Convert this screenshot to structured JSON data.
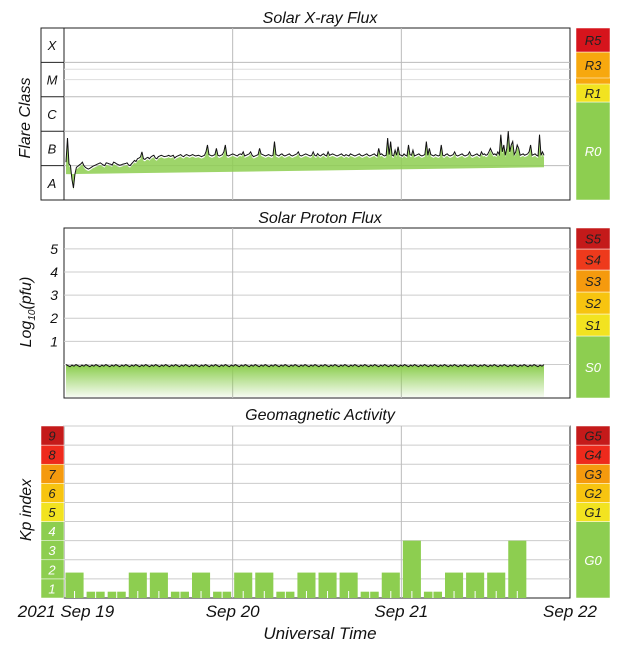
{
  "colors": {
    "green": "#8dce50",
    "r1": "#f2e320",
    "r3": "#f7a80e",
    "r5": "#d6141c",
    "s1": "#f2e320",
    "s2": "#f7c410",
    "s3": "#f59a0e",
    "s4": "#ee3a1c",
    "s5": "#c41a1a",
    "g1": "#f2e320",
    "g2": "#f7c410",
    "g3": "#f59a0e",
    "g4": "#ee2a1c",
    "g5": "#c41a1a",
    "kp": [
      "#8dce50",
      "#8dce50",
      "#8dce50",
      "#8dce50",
      "#f2e320",
      "#f7c410",
      "#f59a0e",
      "#ee2a1c",
      "#c41a1a"
    ]
  },
  "chart_data": [
    {
      "type": "area",
      "title": "Solar X-ray Flux",
      "ylabel": "Flare Class",
      "y_scale": "log",
      "flare_classes": [
        "A",
        "B",
        "C",
        "M",
        "X"
      ],
      "levels": [
        {
          "label": "R0",
          "color_key": "green"
        },
        {
          "label": "R1",
          "color_key": "r1"
        },
        {
          "label": "R3",
          "color_key": "r3"
        },
        {
          "label": "R5",
          "color_key": "r5"
        }
      ],
      "x_range_days": [
        "2021-09-19T00:00",
        "2021-09-22T00:00"
      ],
      "series_hourly_log_flux": [
        -6.9,
        -6.2,
        -6.95,
        -7,
        -7.4,
        -7.65,
        -7.25,
        -7.05,
        -7.02,
        -6.98,
        -6.95,
        -6.9,
        -7.0,
        -7.05,
        -7.08,
        -7.1,
        -7.08,
        -7.05,
        -7.02,
        -7.0,
        -6.98,
        -6.96,
        -6.94,
        -6.92,
        -6.95,
        -6.98,
        -7.0,
        -6.92,
        -6.93,
        -6.95,
        -6.96,
        -6.98,
        -6.9,
        -6.92,
        -6.95,
        -6.97,
        -6.99,
        -6.98,
        -6.96,
        -6.95,
        -6.94,
        -6.92,
        -6.98,
        -7.0,
        -6.95,
        -6.9,
        -6.85,
        -6.88,
        -6.8,
        -6.78,
        -6.75,
        -6.6,
        -6.8,
        -6.82,
        -6.78,
        -6.76,
        -6.8,
        -6.75,
        -6.72,
        -6.7,
        -6.78,
        -6.8,
        -6.74,
        -6.72,
        -6.7,
        -6.72,
        -6.74,
        -6.73,
        -6.72,
        -6.7,
        -6.73,
        -6.72,
        -6.7,
        -6.78,
        -6.74,
        -6.72,
        -6.7,
        -6.68,
        -6.72,
        -6.74,
        -6.7,
        -6.68,
        -6.7,
        -6.72,
        -6.7,
        -6.68,
        -6.7,
        -6.72,
        -6.71,
        -6.7,
        -6.72,
        -6.74,
        -6.72,
        -6.7,
        -6.6,
        -6.4,
        -6.68,
        -6.7,
        -6.72,
        -6.7,
        -6.68,
        -6.5,
        -6.7,
        -6.72,
        -6.7,
        -6.68,
        -6.6,
        -6.4,
        -6.7,
        -6.72,
        -6.7,
        -6.68,
        -6.66,
        -6.68,
        -6.7,
        -6.72,
        -6.68,
        -6.66,
        -6.68,
        -6.6,
        -6.72,
        -6.7,
        -6.68,
        -6.66,
        -6.6,
        -6.7,
        -6.74,
        -6.72,
        -6.7,
        -6.68,
        -6.5,
        -6.66,
        -6.68,
        -6.7,
        -6.72,
        -6.7,
        -6.68,
        -6.7,
        -6.72,
        -6.7,
        -6.3,
        -6.68,
        -6.7,
        -6.72,
        -6.68,
        -6.66,
        -6.7,
        -6.72,
        -6.7,
        -6.68,
        -6.66,
        -6.7,
        -6.72,
        -6.7,
        -6.68,
        -6.66,
        -6.6,
        -6.7,
        -6.72,
        -6.7,
        -6.68,
        -6.66,
        -6.68,
        -6.7,
        -6.72,
        -6.7,
        -6.6,
        -6.7,
        -6.72,
        -6.65,
        -6.7,
        -6.72,
        -6.68,
        -6.66,
        -6.7,
        -6.72,
        -6.6,
        -6.7,
        -6.68,
        -6.66,
        -6.68,
        -6.7,
        -6.72,
        -6.7,
        -6.68,
        -6.66,
        -6.7,
        -6.72,
        -6.68,
        -6.7,
        -6.72,
        -6.66,
        -6.68,
        -6.7,
        -6.72,
        -6.7,
        -6.68,
        -6.66,
        -6.7,
        -6.72,
        -6.7,
        -6.68,
        -6.66,
        -6.7,
        -6.72,
        -6.7,
        -6.68,
        -6.66,
        -6.7,
        -6.72,
        -6.5,
        -6.68,
        -6.66,
        -6.7,
        -6.72,
        -6.7,
        -6.2,
        -6.68,
        -6.3,
        -6.7,
        -6.72,
        -6.55,
        -6.7,
        -6.45,
        -6.68,
        -6.7,
        -6.72,
        -6.66,
        -6.7,
        -6.72,
        -6.4,
        -6.68,
        -6.7,
        -6.55,
        -6.72,
        -6.7,
        -6.68,
        -6.66,
        -6.7,
        -6.72,
        -6.7,
        -6.68,
        -6.3,
        -6.7,
        -6.5,
        -6.68,
        -6.7,
        -6.72,
        -6.68,
        -6.7,
        -6.72,
        -6.7,
        -6.4,
        -6.7,
        -6.72,
        -6.68,
        -6.66,
        -6.7,
        -6.72,
        -6.7,
        -6.68,
        -6.6,
        -6.7,
        -6.72,
        -6.7,
        -6.68,
        -6.66,
        -6.7,
        -6.72,
        -6.7,
        -6.68,
        -6.6,
        -6.7,
        -6.72,
        -6.7,
        -6.68,
        -6.66,
        -6.7,
        -6.72,
        -6.6,
        -6.68,
        -6.66,
        -6.7,
        -6.68,
        -6.6,
        -6.5,
        -6.6,
        -6.68,
        -6.66,
        -6.7,
        -6.6,
        -6.68,
        -6.1,
        -6.6,
        -6.4,
        -6.7,
        -6.5,
        -6.0,
        -6.6,
        -6.4,
        -6.3,
        -6.68,
        -6.6,
        -6.4,
        -6.5,
        -6.7,
        -6.68,
        -6.66,
        -6.7,
        -6.68,
        -6.66,
        -6.6,
        -6.4,
        -6.7,
        -6.68,
        -6.66,
        -6.7,
        -6.72,
        -6.1,
        -6.7,
        -6.6,
        -6.7
      ]
    },
    {
      "type": "area",
      "title": "Solar Proton Flux",
      "ylabel": "Log10(pfu)",
      "ylim": [
        -1.45,
        5.9
      ],
      "y_ticks": [
        1,
        2,
        3,
        4,
        5
      ],
      "levels": [
        {
          "label": "S0",
          "color_key": "green"
        },
        {
          "label": "S1",
          "color_key": "s1"
        },
        {
          "label": "S2",
          "color_key": "s2"
        },
        {
          "label": "S3",
          "color_key": "s3"
        },
        {
          "label": "S4",
          "color_key": "s4"
        },
        {
          "label": "S5",
          "color_key": "s5"
        }
      ],
      "baseline_log_pfu": -0.05
    },
    {
      "type": "bar",
      "title": "Geomagnetic Activity",
      "ylabel": "Kp index",
      "y_ticks": [
        1,
        2,
        3,
        4,
        5,
        6,
        7,
        8,
        9
      ],
      "levels": [
        {
          "label": "G0",
          "color_key": "green"
        },
        {
          "label": "G1",
          "color_key": "g1"
        },
        {
          "label": "G2",
          "color_key": "g2"
        },
        {
          "label": "G3",
          "color_key": "g3"
        },
        {
          "label": "G4",
          "color_key": "g4"
        },
        {
          "label": "G5",
          "color_key": "g5"
        }
      ],
      "kp_3hourly": [
        1.33,
        0.33,
        0.33,
        1.33,
        1.33,
        0.33,
        1.33,
        0.33,
        1.33,
        1.33,
        0.33,
        1.33,
        1.33,
        1.33,
        0.33,
        1.33,
        3.0,
        0.33,
        1.33,
        1.33,
        1.33,
        3.0
      ],
      "xlabel": "Universal Time",
      "x_tick_labels": [
        "2021 Sep 19",
        "Sep 20",
        "Sep 21",
        "Sep 22"
      ]
    }
  ]
}
